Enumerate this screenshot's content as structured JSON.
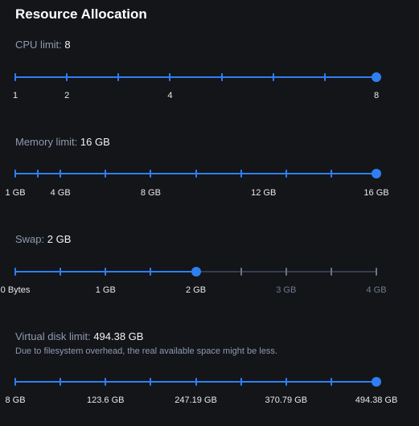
{
  "title": "Resource Allocation",
  "sliders": [
    {
      "id": "cpu",
      "label": "CPU limit:",
      "value_text": "8",
      "note": "",
      "min": 1,
      "max": 8,
      "value": 8,
      "tick_values": [
        1,
        2,
        3,
        4,
        5,
        6,
        7,
        8
      ],
      "labels": [
        {
          "text": "1",
          "value": 1
        },
        {
          "text": "2",
          "value": 2
        },
        {
          "text": "4",
          "value": 4
        },
        {
          "text": "8",
          "value": 8
        }
      ]
    },
    {
      "id": "memory",
      "label": "Memory limit:",
      "value_text": "16 GB",
      "note": "",
      "min": 0,
      "max": 16,
      "value": 16,
      "tick_values": [
        0,
        1,
        2,
        4,
        6,
        8,
        10,
        12,
        14,
        16
      ],
      "labels": [
        {
          "text": "1 GB",
          "value": 0
        },
        {
          "text": "4 GB",
          "value": 2
        },
        {
          "text": "8 GB",
          "value": 6
        },
        {
          "text": "12 GB",
          "value": 11
        },
        {
          "text": "16 GB",
          "value": 16
        }
      ]
    },
    {
      "id": "swap",
      "label": "Swap:",
      "value_text": "2 GB",
      "note": "",
      "min": 0,
      "max": 4,
      "value": 2,
      "tick_values": [
        0,
        0.5,
        1,
        1.5,
        2,
        2.5,
        3,
        3.5,
        4
      ],
      "labels": [
        {
          "text": "0 Bytes",
          "value": 0
        },
        {
          "text": "1 GB",
          "value": 1
        },
        {
          "text": "2 GB",
          "value": 2
        },
        {
          "text": "3 GB",
          "value": 3
        },
        {
          "text": "4 GB",
          "value": 4
        }
      ]
    },
    {
      "id": "disk",
      "label": "Virtual disk limit:",
      "value_text": "494.38 GB",
      "note": "Due to filesystem overhead, the real available space might be less.",
      "min": 0,
      "max": 494.38,
      "value": 494.38,
      "tick_values": [
        0,
        61.8,
        123.6,
        185.4,
        247.19,
        308.98,
        370.79,
        432.58,
        494.38
      ],
      "labels": [
        {
          "text": "8 GB",
          "value": 0
        },
        {
          "text": "123.6 GB",
          "value": 123.6
        },
        {
          "text": "247.19 GB",
          "value": 247.19
        },
        {
          "text": "370.79 GB",
          "value": 370.79
        },
        {
          "text": "494.38 GB",
          "value": 494.38
        }
      ]
    }
  ]
}
